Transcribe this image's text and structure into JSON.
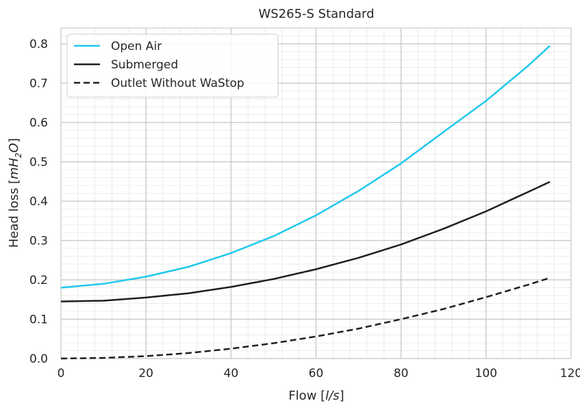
{
  "chart_data": {
    "type": "line",
    "title": "WS265-S Standard",
    "xlabel": {
      "prefix": "Flow [",
      "italic": "l/s",
      "suffix": "]"
    },
    "ylabel": {
      "prefix": "Head loss [",
      "italic_m": "mH",
      "sub": "2",
      "italic_o": "O",
      "suffix": "]"
    },
    "xlim": [
      0,
      120
    ],
    "ylim": [
      0.0,
      0.84
    ],
    "x_ticks": [
      0,
      20,
      40,
      60,
      80,
      100,
      120
    ],
    "x_tick_labels": [
      "0",
      "20",
      "40",
      "60",
      "80",
      "100",
      "120"
    ],
    "y_ticks": [
      0.0,
      0.1,
      0.2,
      0.3,
      0.4,
      0.5,
      0.6,
      0.7,
      0.8
    ],
    "y_tick_labels": [
      "0.0",
      "0.1",
      "0.2",
      "0.3",
      "0.4",
      "0.5",
      "0.6",
      "0.7",
      "0.8"
    ],
    "grid": true,
    "minor_grid": true,
    "legend_position": "top-left",
    "x": [
      0,
      10,
      20,
      30,
      40,
      50,
      60,
      70,
      80,
      90,
      100,
      110,
      115
    ],
    "series": [
      {
        "name": "Open Air",
        "color": "#1ec8ec",
        "dash": "solid",
        "values": [
          0.18,
          0.19,
          0.208,
          0.233,
          0.268,
          0.311,
          0.364,
          0.426,
          0.496,
          0.576,
          0.655,
          0.745,
          0.795
        ]
      },
      {
        "name": "Submerged",
        "color": "#1e1e1e",
        "dash": "solid",
        "values": [
          0.145,
          0.147,
          0.155,
          0.166,
          0.182,
          0.202,
          0.227,
          0.256,
          0.29,
          0.33,
          0.374,
          0.424,
          0.449
        ]
      },
      {
        "name": "Outlet Without WaStop",
        "color": "#1e1e1e",
        "dash": "dashed",
        "values": [
          0.0,
          0.0015,
          0.006,
          0.014,
          0.025,
          0.039,
          0.056,
          0.076,
          0.1,
          0.126,
          0.156,
          0.188,
          0.205
        ]
      }
    ]
  }
}
